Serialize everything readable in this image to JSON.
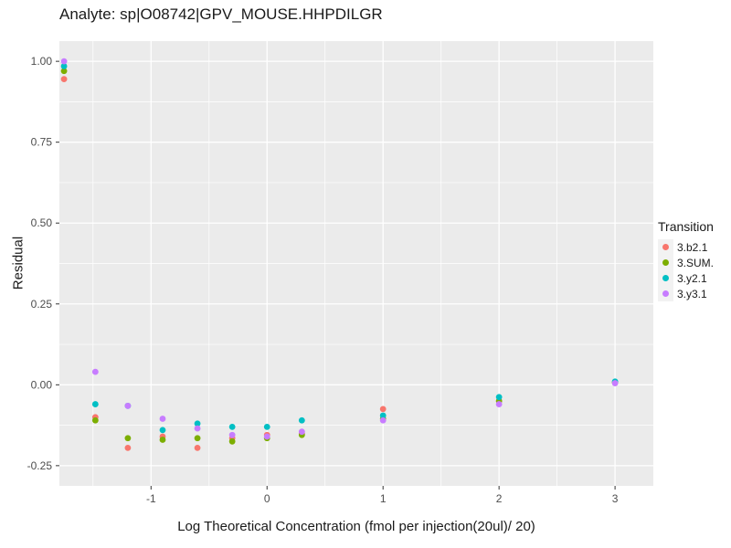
{
  "title": "Analyte: sp|O08742|GPV_MOUSE.HHPDILGR",
  "chart_data": {
    "type": "scatter",
    "title": "Analyte: sp|O08742|GPV_MOUSE.HHPDILGR",
    "xlabel": "Log Theoretical Concentration (fmol per injection(20ul)/ 20)",
    "ylabel": "Residual",
    "legend_title": "Transition",
    "legend_position": "right",
    "panel_bg": "#EBEBEB",
    "grid_color": "#FFFFFF",
    "tick_label_color": "#4D4D4D",
    "xlim": [
      -1.79,
      3.33
    ],
    "ylim": [
      -0.3125,
      1.0625
    ],
    "x_ticks": [
      -1,
      0,
      1,
      2,
      3
    ],
    "x_tick_labels": [
      "-1",
      "0",
      "1",
      "2",
      "3"
    ],
    "y_ticks": [
      1.0,
      0.75,
      0.5,
      0.25,
      0.0,
      -0.25
    ],
    "y_tick_labels": [
      "1.00",
      "0.75",
      "0.50",
      "0.25",
      "0.00",
      "-0.25"
    ],
    "x_minor": [
      -1.5,
      -0.5,
      0.5,
      1.5,
      2.5
    ],
    "y_minor": [
      0.875,
      0.625,
      0.375,
      0.125,
      -0.125
    ],
    "x": [
      -1.75,
      -1.48,
      -1.2,
      -0.9,
      -0.6,
      -0.3,
      0,
      0.3,
      1,
      2,
      3
    ],
    "series": [
      {
        "name": "3.b2.1",
        "color": "#F8766D",
        "values": [
          0.945,
          -0.1,
          -0.195,
          -0.16,
          -0.195,
          -0.165,
          -0.155,
          -0.15,
          -0.075,
          -0.05,
          0.008
        ]
      },
      {
        "name": "3.SUM.",
        "color": "#7CAE00",
        "values": [
          0.97,
          -0.11,
          -0.165,
          -0.17,
          -0.165,
          -0.175,
          -0.165,
          -0.155,
          -0.105,
          -0.05,
          0.008
        ]
      },
      {
        "name": "3.y2.1",
        "color": "#00BFC4",
        "values": [
          0.985,
          -0.06,
          -0.065,
          -0.14,
          -0.12,
          -0.13,
          -0.13,
          -0.11,
          -0.095,
          -0.038,
          0.01
        ]
      },
      {
        "name": "3.y3.1",
        "color": "#C77CFF",
        "values": [
          1.0,
          0.04,
          -0.065,
          -0.105,
          -0.135,
          -0.155,
          -0.16,
          -0.145,
          -0.11,
          -0.06,
          0.005
        ]
      }
    ]
  }
}
